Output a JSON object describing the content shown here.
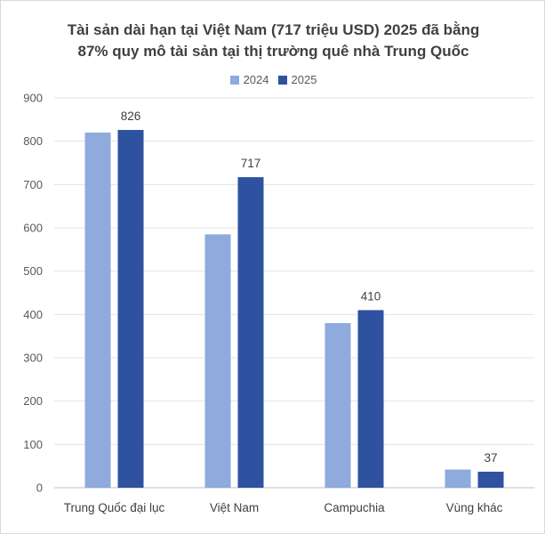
{
  "chart_data": {
    "type": "bar",
    "title_lines": [
      "Tài sản dài hạn tại Việt Nam (717 triệu USD) 2025 đã bằng",
      "87% quy mô tài sản tại thị trường quê nhà Trung Quốc"
    ],
    "categories": [
      "Trung Quốc đại lục",
      "Việt Nam",
      "Campuchia",
      "Vùng khác"
    ],
    "series": [
      {
        "name": "2024",
        "color": "#8faadc",
        "values": [
          820,
          585,
          380,
          42
        ],
        "labels": [
          "",
          "",
          "",
          ""
        ]
      },
      {
        "name": "2025",
        "color": "#2f52a0",
        "values": [
          826,
          717,
          410,
          37
        ],
        "labels": [
          "826",
          "717",
          "410",
          "37"
        ]
      }
    ],
    "y_ticks": [
      "0",
      "100",
      "200",
      "300",
      "400",
      "500",
      "600",
      "700",
      "800",
      "900"
    ],
    "ylim": [
      0,
      900
    ],
    "grid": true,
    "legend_position": "top-center"
  }
}
